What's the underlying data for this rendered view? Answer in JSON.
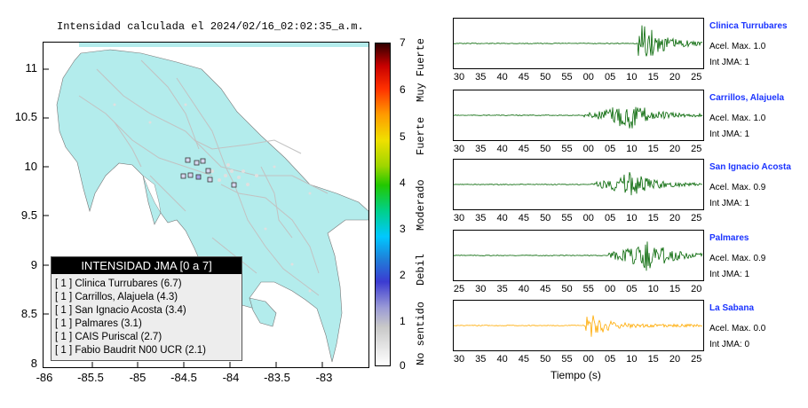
{
  "title": "Intensidad calculada el 2024/02/16_02:02:35_a.m.",
  "map": {
    "y_ticks": [
      "11",
      "10.5",
      "10",
      "9.5",
      "9",
      "8.5",
      "8"
    ],
    "x_ticks": [
      "-86",
      "-85.5",
      "-85",
      "-84.5",
      "-84",
      "-83.5",
      "-83"
    ],
    "land_color": "#b3ecec",
    "sea_color": "#ffffff"
  },
  "legend": {
    "header": "INTENSIDAD JMA [0 a 7]",
    "rows": [
      "[ 1 ]  Clinica Turrubares (6.7)",
      "[ 1 ]  Carrillos, Alajuela (4.3)",
      "[ 1 ]  San Ignacio Acosta (3.4)",
      "[ 1 ]  Palmares (3.1)",
      "[ 1 ]  CAIS Puriscal (2.7)",
      "[ 1 ]  Fabio Baudrit N00 UCR (2.1)"
    ]
  },
  "colorbar": {
    "ticks": [
      "7",
      "6",
      "5",
      "4",
      "3",
      "2",
      "1",
      "0"
    ],
    "labels": [
      "Muy Fuerte",
      "Fuerte",
      "Moderado",
      "Debil",
      "No sentido"
    ]
  },
  "panels": [
    {
      "station": "Clinica Turrubares",
      "acel": "Acel. Max. 1.0",
      "int": "Int JMA: 1",
      "color": "#006400",
      "ticks": [
        "30",
        "35",
        "40",
        "45",
        "50",
        "55",
        "00",
        "05",
        "10",
        "15",
        "20",
        "25"
      ]
    },
    {
      "station": "Carrillos, Alajuela",
      "acel": "Acel. Max. 1.0",
      "int": "Int JMA: 1",
      "color": "#006400",
      "ticks": [
        "30",
        "35",
        "40",
        "45",
        "50",
        "55",
        "00",
        "05",
        "10",
        "15",
        "20",
        "25"
      ]
    },
    {
      "station": "San Ignacio Acosta",
      "acel": "Acel. Max. 0.9",
      "int": "Int JMA: 1",
      "color": "#006400",
      "ticks": [
        "30",
        "35",
        "40",
        "45",
        "50",
        "55",
        "00",
        "05",
        "10",
        "15",
        "20",
        "25"
      ]
    },
    {
      "station": "Palmares",
      "acel": "Acel. Max. 0.9",
      "int": "Int JMA: 1",
      "color": "#006400",
      "ticks": [
        "25",
        "30",
        "35",
        "40",
        "45",
        "50",
        "55",
        "00",
        "05",
        "10",
        "15",
        "20"
      ]
    },
    {
      "station": "La Sabana",
      "acel": "Acel. Max. 0.0",
      "int": "Int JMA: 0",
      "color": "#ffaa00",
      "ticks": [
        "30",
        "35",
        "40",
        "45",
        "50",
        "55",
        "00",
        "05",
        "10",
        "15",
        "20",
        "25"
      ]
    }
  ],
  "xlabel": "Tiempo (s)"
}
